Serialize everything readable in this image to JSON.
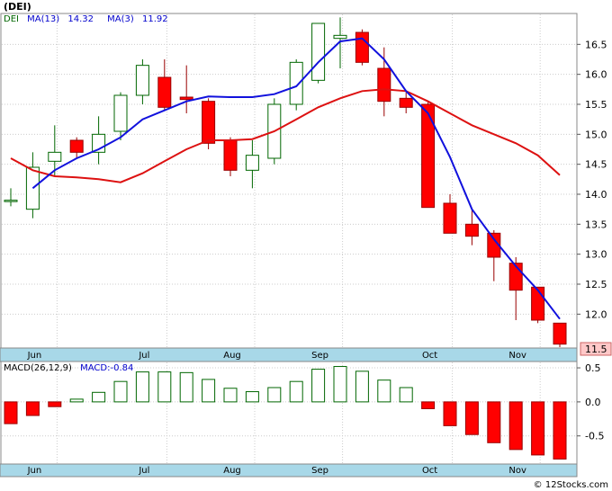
{
  "title": "(DEI)",
  "watermark": "© 12Stocks.com",
  "price_label": "11.5",
  "legend": {
    "ticker": "DEI",
    "ma13_label": "MA(13)",
    "ma13_value": "14.32",
    "ma3_label": "MA(3)",
    "ma3_value": "11.92"
  },
  "macd_legend": {
    "label": "MACD(26,12,9)",
    "value_label": "MACD:-0.84"
  },
  "colors": {
    "up": "#ffffff",
    "up_edge": "#006600",
    "down": "#ff0000",
    "down_edge": "#990000",
    "ma13": "#dd1111",
    "ma3": "#1111dd",
    "axis_band": "#a8d8e8",
    "legend_ticker": "#006600",
    "legend_ma": "#0000cc",
    "grid": "#cccccc"
  },
  "chart_data": [
    {
      "type": "candlestick",
      "x_labels": [
        "Jun",
        "Jul",
        "Aug",
        "Sep",
        "Oct",
        "Nov"
      ],
      "x_label_index": [
        1,
        6,
        10,
        14,
        19,
        23
      ],
      "y_ticks": [
        12.0,
        12.5,
        13.0,
        13.5,
        14.0,
        14.5,
        15.0,
        15.5,
        16.0,
        16.5
      ],
      "ylim": [
        11.45,
        17.0
      ],
      "grid": true,
      "candles": [
        {
          "o": 13.9,
          "h": 14.1,
          "l": 13.8,
          "c": 13.9
        },
        {
          "o": 13.75,
          "h": 14.7,
          "l": 13.6,
          "c": 14.45
        },
        {
          "o": 14.55,
          "h": 15.15,
          "l": 14.3,
          "c": 14.7
        },
        {
          "o": 14.9,
          "h": 14.95,
          "l": 14.6,
          "c": 14.7
        },
        {
          "o": 14.7,
          "h": 15.3,
          "l": 14.5,
          "c": 15.0
        },
        {
          "o": 15.05,
          "h": 15.7,
          "l": 14.9,
          "c": 15.65
        },
        {
          "o": 15.65,
          "h": 16.25,
          "l": 15.5,
          "c": 16.15
        },
        {
          "o": 15.95,
          "h": 16.25,
          "l": 15.4,
          "c": 15.45
        },
        {
          "o": 15.62,
          "h": 16.15,
          "l": 15.35,
          "c": 15.58
        },
        {
          "o": 15.55,
          "h": 15.6,
          "l": 14.75,
          "c": 14.85
        },
        {
          "o": 14.9,
          "h": 14.95,
          "l": 14.3,
          "c": 14.4
        },
        {
          "o": 14.4,
          "h": 14.9,
          "l": 14.1,
          "c": 14.65
        },
        {
          "o": 14.6,
          "h": 15.6,
          "l": 14.5,
          "c": 15.5
        },
        {
          "o": 15.5,
          "h": 16.25,
          "l": 15.4,
          "c": 16.2
        },
        {
          "o": 15.9,
          "h": 16.85,
          "l": 15.85,
          "c": 16.85
        },
        {
          "o": 16.6,
          "h": 16.95,
          "l": 16.1,
          "c": 16.65
        },
        {
          "o": 16.7,
          "h": 16.75,
          "l": 16.15,
          "c": 16.2
        },
        {
          "o": 16.1,
          "h": 16.45,
          "l": 15.3,
          "c": 15.55
        },
        {
          "o": 15.6,
          "h": 15.7,
          "l": 15.35,
          "c": 15.45
        },
        {
          "o": 15.5,
          "h": 15.55,
          "l": 13.8,
          "c": 13.78
        },
        {
          "o": 13.85,
          "h": 14.0,
          "l": 13.35,
          "c": 13.35
        },
        {
          "o": 13.5,
          "h": 13.75,
          "l": 13.15,
          "c": 13.3
        },
        {
          "o": 13.35,
          "h": 13.4,
          "l": 12.55,
          "c": 12.95
        },
        {
          "o": 12.85,
          "h": 12.95,
          "l": 11.9,
          "c": 12.4
        },
        {
          "o": 12.45,
          "h": 12.45,
          "l": 11.85,
          "c": 11.9
        },
        {
          "o": 11.85,
          "h": 11.85,
          "l": 11.45,
          "c": 11.5
        }
      ],
      "ma13": [
        [
          0,
          14.6
        ],
        [
          1,
          14.4
        ],
        [
          2,
          14.3
        ],
        [
          3,
          14.28
        ],
        [
          4,
          14.25
        ],
        [
          5,
          14.2
        ],
        [
          6,
          14.35
        ],
        [
          7,
          14.55
        ],
        [
          8,
          14.75
        ],
        [
          9,
          14.9
        ],
        [
          10,
          14.9
        ],
        [
          11,
          14.92
        ],
        [
          12,
          15.05
        ],
        [
          13,
          15.25
        ],
        [
          14,
          15.45
        ],
        [
          15,
          15.6
        ],
        [
          16,
          15.72
        ],
        [
          17,
          15.75
        ],
        [
          18,
          15.72
        ],
        [
          19,
          15.55
        ],
        [
          20,
          15.35
        ],
        [
          21,
          15.15
        ],
        [
          22,
          15.0
        ],
        [
          23,
          14.85
        ],
        [
          24,
          14.65
        ],
        [
          25,
          14.32
        ]
      ],
      "ma3": [
        [
          1,
          14.1
        ],
        [
          2,
          14.4
        ],
        [
          3,
          14.6
        ],
        [
          4,
          14.75
        ],
        [
          5,
          14.95
        ],
        [
          6,
          15.25
        ],
        [
          7,
          15.4
        ],
        [
          8,
          15.55
        ],
        [
          9,
          15.63
        ],
        [
          10,
          15.62
        ],
        [
          11,
          15.62
        ],
        [
          12,
          15.67
        ],
        [
          13,
          15.8
        ],
        [
          14,
          16.2
        ],
        [
          15,
          16.55
        ],
        [
          16,
          16.6
        ],
        [
          17,
          16.25
        ],
        [
          18,
          15.72
        ],
        [
          19,
          15.35
        ],
        [
          20,
          14.62
        ],
        [
          21,
          13.75
        ],
        [
          22,
          13.25
        ],
        [
          23,
          12.8
        ],
        [
          24,
          12.4
        ],
        [
          25,
          11.92
        ]
      ]
    },
    {
      "type": "bar",
      "name": "MACD",
      "x_labels": [
        "Jun",
        "Jul",
        "Aug",
        "Sep",
        "Oct",
        "Nov"
      ],
      "y_ticks": [
        0.5,
        0.0,
        -0.5
      ],
      "y_tick_labels": [
        "0.5",
        "0.0",
        "-0.5"
      ],
      "ylim": [
        -0.9,
        0.58
      ],
      "values": [
        -0.32,
        -0.2,
        -0.07,
        0.04,
        0.14,
        0.3,
        0.44,
        0.44,
        0.43,
        0.33,
        0.2,
        0.15,
        0.21,
        0.3,
        0.48,
        0.52,
        0.45,
        0.32,
        0.21,
        -0.1,
        -0.35,
        -0.48,
        -0.6,
        -0.7,
        -0.78,
        -0.84
      ]
    }
  ]
}
